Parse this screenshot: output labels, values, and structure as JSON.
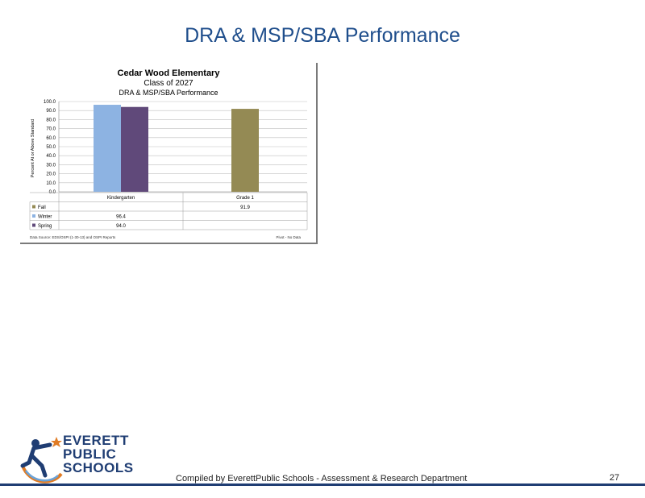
{
  "slide": {
    "title": "DRA & MSP/SBA Performance",
    "footer": "Compiled  by EverettPublic Schools  - Assessment & Research Department",
    "page_number": "27"
  },
  "logo": {
    "line1": "EVERETT",
    "line2": "PUBLIC",
    "line3": "SCHOOLS"
  },
  "chart_data": {
    "type": "bar",
    "title": "Cedar Wood Elementary",
    "subtitle1": "Class of 2027",
    "subtitle2": "DRA & MSP/SBA Performance",
    "ylabel": "Percent At or Above Standard",
    "ylim": [
      0,
      100
    ],
    "yticks": [
      "0.0",
      "10.0",
      "20.0",
      "30.0",
      "40.0",
      "50.0",
      "60.0",
      "70.0",
      "80.0",
      "90.0",
      "100.0"
    ],
    "categories": [
      "Kindergarten",
      "Grade 1"
    ],
    "series": [
      {
        "name": "Fall",
        "color": "#948a54",
        "values": [
          null,
          91.9
        ]
      },
      {
        "name": "Winter",
        "color": "#8db3e2",
        "values": [
          96.4,
          null
        ]
      },
      {
        "name": "Spring",
        "color": "#60497a",
        "values": [
          94.0,
          null
        ]
      }
    ],
    "table": [
      {
        "name": "Fall",
        "cells": [
          "",
          "91.9"
        ]
      },
      {
        "name": "Winter",
        "cells": [
          "96.4",
          ""
        ]
      },
      {
        "name": "Spring",
        "cells": [
          "94.0",
          ""
        ]
      }
    ],
    "source_note": "Data Source: EDS/OSPI (1-30-13) and OSPI Reports",
    "date_note": "Pivot - No Data",
    "grid": true
  }
}
